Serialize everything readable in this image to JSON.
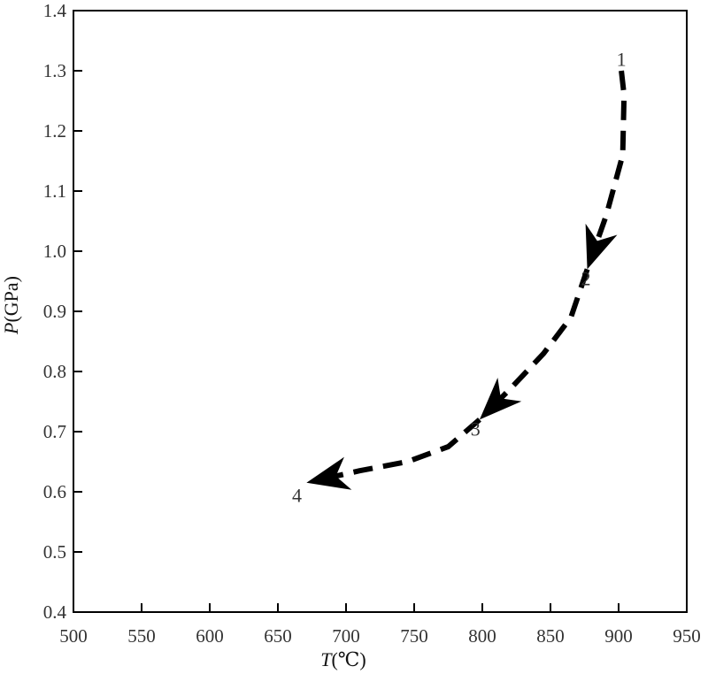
{
  "chart_data": {
    "type": "line",
    "title": "",
    "xlabel_var": "T",
    "xlabel_unit": "(℃)",
    "ylabel_var": "P",
    "ylabel_unit": "(GPa)",
    "xlim": [
      500,
      950
    ],
    "ylim": [
      0.4,
      1.4
    ],
    "xticks": [
      500,
      550,
      600,
      650,
      700,
      750,
      800,
      850,
      900,
      950
    ],
    "yticks": [
      0.4,
      0.5,
      0.6,
      0.7,
      0.8,
      0.9,
      1.0,
      1.1,
      1.2,
      1.3,
      1.4
    ],
    "xtick_labels": [
      "500",
      "550",
      "600",
      "650",
      "700",
      "750",
      "800",
      "850",
      "900",
      "950"
    ],
    "ytick_labels": [
      "0.4",
      "0.5",
      "0.6",
      "0.7",
      "0.8",
      "0.9",
      "1.0",
      "1.1",
      "1.2",
      "1.3",
      "1.4"
    ],
    "grid": false,
    "line_style": "dashed",
    "points": [
      {
        "label": "1",
        "x": 902,
        "y": 1.3
      },
      {
        "label": "2",
        "x": 877,
        "y": 0.97
      },
      {
        "label": "3",
        "x": 798,
        "y": 0.72
      },
      {
        "label": "4",
        "x": 671,
        "y": 0.615
      }
    ],
    "segments": [
      {
        "from": "1",
        "to": "2",
        "via": [
          [
            904,
            1.26
          ],
          [
            903,
            1.16
          ],
          [
            891,
            1.06
          ]
        ]
      },
      {
        "from": "2",
        "to": "3",
        "via": [
          [
            865,
            0.89
          ],
          [
            845,
            0.83
          ],
          [
            820,
            0.77
          ]
        ]
      },
      {
        "from": "3",
        "to": "4",
        "via": [
          [
            775,
            0.675
          ],
          [
            745,
            0.65
          ],
          [
            710,
            0.635
          ]
        ]
      }
    ],
    "label_positions": [
      {
        "label": "1",
        "x": 902,
        "y": 1.32
      },
      {
        "label": "2",
        "x": 876,
        "y": 0.955
      },
      {
        "label": "3",
        "x": 795,
        "y": 0.705
      },
      {
        "label": "4",
        "x": 664,
        "y": 0.595
      }
    ]
  }
}
